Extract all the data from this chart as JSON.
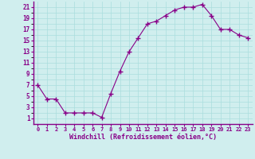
{
  "x": [
    0,
    1,
    2,
    3,
    4,
    5,
    6,
    7,
    8,
    9,
    10,
    11,
    12,
    13,
    14,
    15,
    16,
    17,
    18,
    19,
    20,
    21,
    22,
    23
  ],
  "y": [
    7,
    4.5,
    4.5,
    2,
    2,
    2,
    2,
    1.2,
    5.5,
    9.5,
    13,
    15.5,
    18,
    18.5,
    19.5,
    20.5,
    21,
    21,
    21.5,
    19.5,
    17,
    17,
    16,
    15.5
  ],
  "line_color": "#880088",
  "marker_color": "#880088",
  "bg_color": "#d0eeee",
  "grid_color": "#aadddd",
  "xlabel": "Windchill (Refroidissement éolien,°C)",
  "xlabel_color": "#880088",
  "xlim": [
    -0.5,
    23.5
  ],
  "ylim": [
    0,
    22
  ],
  "yticks": [
    1,
    3,
    5,
    7,
    9,
    11,
    13,
    15,
    17,
    19,
    21
  ],
  "xticks": [
    0,
    1,
    2,
    3,
    4,
    5,
    6,
    7,
    8,
    9,
    10,
    11,
    12,
    13,
    14,
    15,
    16,
    17,
    18,
    19,
    20,
    21,
    22,
    23
  ],
  "xtick_labels": [
    "0",
    "1",
    "2",
    "3",
    "4",
    "5",
    "6",
    "7",
    "8",
    "9",
    "10",
    "11",
    "12",
    "13",
    "14",
    "15",
    "16",
    "17",
    "18",
    "19",
    "20",
    "21",
    "22",
    "23"
  ],
  "tick_color": "#880088",
  "spine_color": "#880088",
  "axis_line_color": "#880088"
}
